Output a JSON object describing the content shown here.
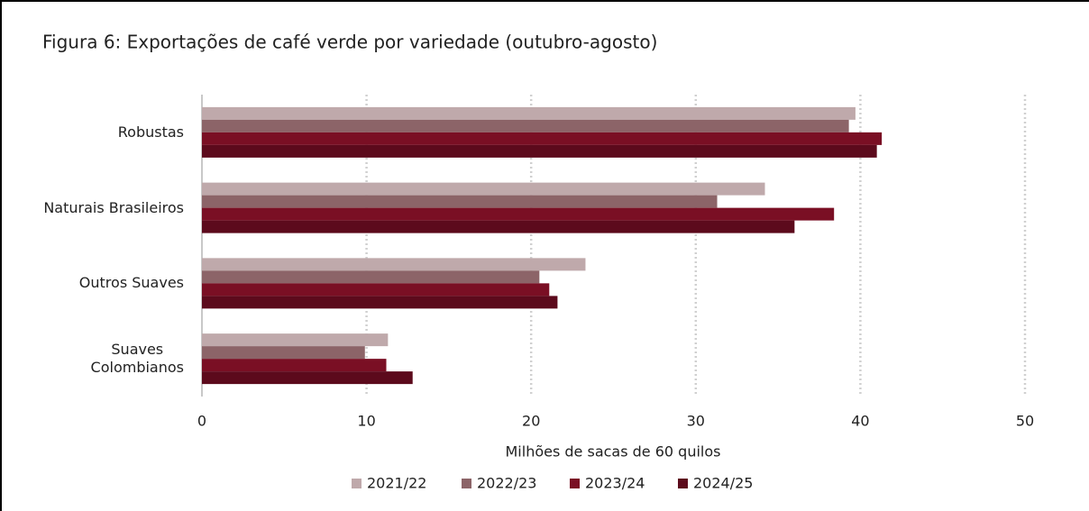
{
  "chart_data": {
    "type": "hbar",
    "title": "Figura 6: Exportações de café verde por variedade (outubro-agosto)",
    "x_label": "Milhões de sacas de 60 quilos",
    "categories": [
      "Robustas",
      "Naturais Brasileiros",
      "Outros Suaves",
      "Suaves\nColombianos"
    ],
    "series": [
      {
        "name": "2021/22",
        "color": "#bfa9ab",
        "values": [
          39.7,
          34.2,
          23.3,
          11.3
        ]
      },
      {
        "name": "2022/23",
        "color": "#8c6468",
        "values": [
          39.3,
          31.3,
          20.5,
          9.9
        ]
      },
      {
        "name": "2023/24",
        "color": "#7a0f24",
        "values": [
          41.3,
          38.4,
          21.1,
          11.2
        ]
      },
      {
        "name": "2024/25",
        "color": "#5c0a1c",
        "values": [
          41.0,
          36.0,
          21.6,
          12.8
        ]
      }
    ],
    "xlim": [
      0,
      50
    ],
    "xticks": [
      0,
      10,
      20,
      30,
      40,
      50
    ],
    "grid": true,
    "legend": "bottom"
  }
}
